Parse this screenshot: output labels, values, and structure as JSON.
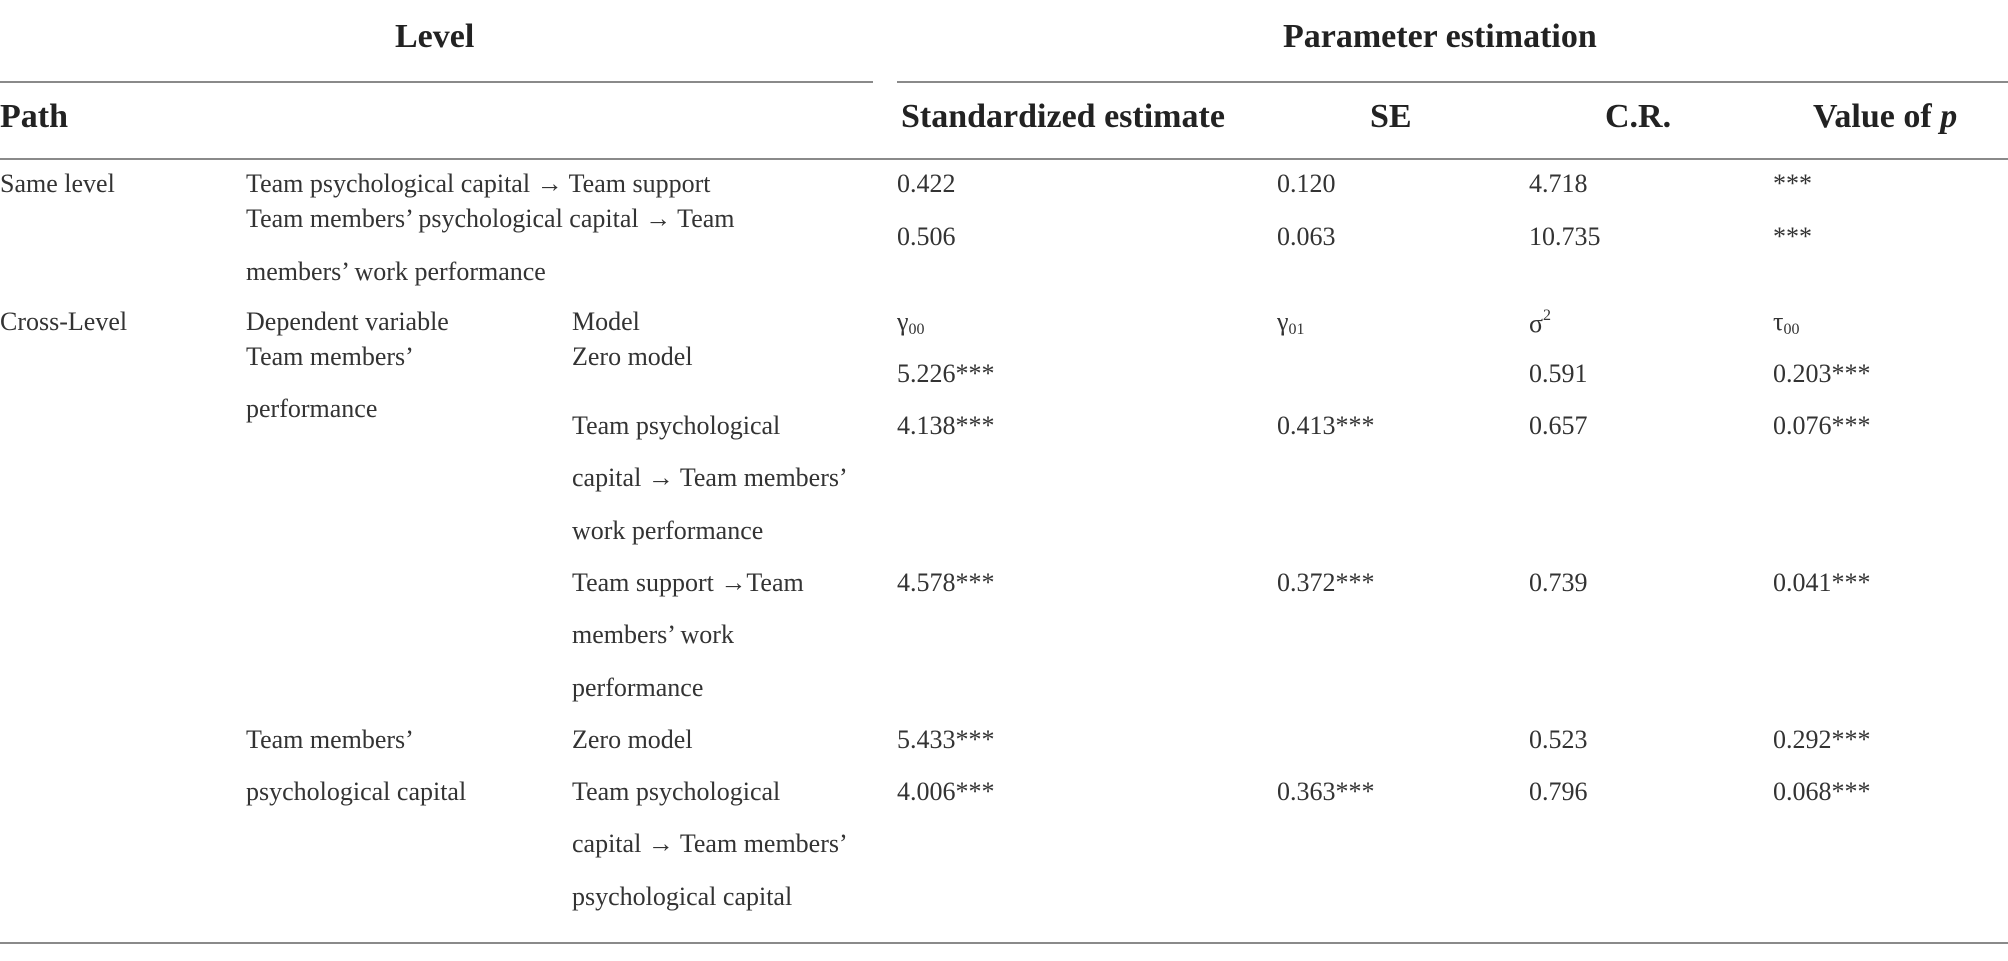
{
  "header": {
    "level": "Level",
    "parameter_estimation": "Parameter estimation",
    "path": "Path",
    "standardized_estimate": "Standardized estimate",
    "se": "SE",
    "cr": "C.R.",
    "value_of_p_prefix": "Value of ",
    "value_of_p_italic": "p"
  },
  "same_level": {
    "label": "Same level",
    "rows": [
      {
        "path": "Team psychological capital → Team support",
        "estimate": "0.422",
        "se": "0.120",
        "cr": "4.718",
        "p": "***"
      },
      {
        "path_line1": "Team members’ psychological capital → Team",
        "path_line2": "members’ work performance",
        "estimate": "0.506",
        "se": "0.063",
        "cr": "10.735",
        "p": "***"
      }
    ]
  },
  "cross_level": {
    "label": "Cross-Level",
    "dependent_variable_label": "Dependent variable",
    "model_label": "Model",
    "col_heads": {
      "g00_base": "γ",
      "g00_sub": "00",
      "g01_base": "γ",
      "g01_sub": "01",
      "sigma_base": "σ",
      "sigma_sup": "2",
      "tau_base": "τ",
      "tau_sub": "00"
    },
    "group1": {
      "dv_line1": "Team members’",
      "dv_line2": "performance",
      "rows": [
        {
          "model_lines": [
            "Zero model"
          ],
          "g00": "5.226***",
          "g01": "",
          "sigma2": "0.591",
          "tau00": "0.203***"
        },
        {
          "model_lines": [
            "Team psychological",
            "capital → Team members’",
            "work performance"
          ],
          "g00": "4.138***",
          "g01": "0.413***",
          "sigma2": "0.657",
          "tau00": "0.076***"
        },
        {
          "model_lines": [
            "Team support →Team",
            "members’ work",
            "performance"
          ],
          "g00": "4.578***",
          "g01": "0.372***",
          "sigma2": "0.739",
          "tau00": "0.041***"
        }
      ]
    },
    "group2": {
      "dv_line1": "Team members’",
      "dv_line2": "psychological capital",
      "rows": [
        {
          "model_lines": [
            "Zero model"
          ],
          "g00": "5.433***",
          "g01": "",
          "sigma2": "0.523",
          "tau00": "0.292***"
        },
        {
          "model_lines": [
            "Team psychological",
            "capital → Team members’",
            "psychological capital"
          ],
          "g00": "4.006***",
          "g01": "0.363***",
          "sigma2": "0.796",
          "tau00": "0.068***"
        }
      ]
    }
  }
}
